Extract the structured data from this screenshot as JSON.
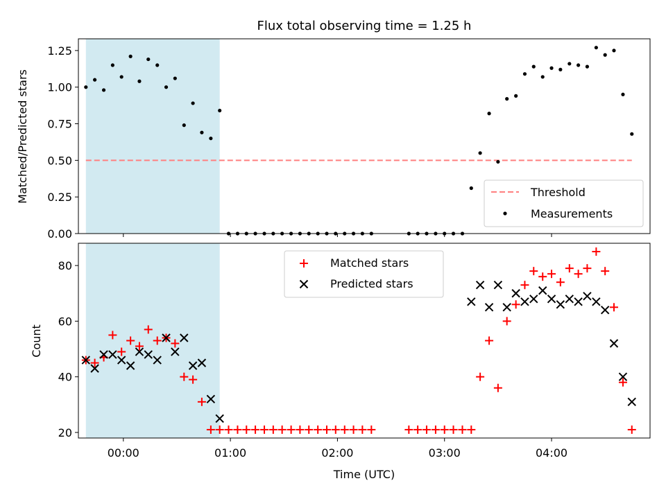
{
  "title": "Flux total observing time = 1.25 h",
  "colors": {
    "shade": "#add8e6",
    "threshold": "#ff7f7f",
    "measurement": "#000000",
    "matched": "#ff0000",
    "predicted": "#000000"
  },
  "chart_data": [
    {
      "type": "scatter",
      "panel": "top",
      "ylabel": "Matched/Predicted stars",
      "xlabel": "",
      "xlim": [
        -0.42,
        4.92
      ],
      "ylim": [
        0,
        1.33
      ],
      "yticks": [
        0.0,
        0.25,
        0.5,
        0.75,
        1.0,
        1.25
      ],
      "ytick_labels": [
        "0.00",
        "0.25",
        "0.50",
        "0.75",
        "1.00",
        "1.25"
      ],
      "xticks": [
        0,
        1,
        2,
        3,
        4
      ],
      "shaded_region": [
        -0.35,
        0.9
      ],
      "threshold": {
        "name": "Threshold",
        "y": 0.5,
        "x_range": [
          -0.35,
          4.75
        ]
      },
      "legend": {
        "position": "lower-right",
        "entries": [
          "Threshold",
          "Measurements"
        ]
      },
      "series": [
        {
          "name": "Measurements",
          "x": [
            -0.35,
            -0.267,
            -0.183,
            -0.1,
            -0.017,
            0.067,
            0.15,
            0.233,
            0.317,
            0.4,
            0.483,
            0.567,
            0.65,
            0.733,
            0.817,
            0.9,
            0.983,
            1.067,
            1.15,
            1.233,
            1.317,
            1.4,
            1.483,
            1.567,
            1.65,
            1.733,
            1.817,
            1.9,
            1.983,
            2.067,
            2.15,
            2.233,
            2.317,
            2.667,
            2.75,
            2.833,
            2.917,
            3.0,
            3.083,
            3.167,
            3.25,
            3.333,
            3.417,
            3.5,
            3.583,
            3.667,
            3.75,
            3.833,
            3.917,
            4.0,
            4.083,
            4.167,
            4.25,
            4.333,
            4.417,
            4.5,
            4.583,
            4.667,
            4.75
          ],
          "y": [
            1.0,
            1.05,
            0.98,
            1.15,
            1.07,
            1.21,
            1.04,
            1.19,
            1.15,
            1.0,
            1.06,
            0.74,
            0.89,
            0.69,
            0.65,
            0.84,
            0,
            0,
            0,
            0,
            0,
            0,
            0,
            0,
            0,
            0,
            0,
            0,
            0,
            0,
            0,
            0,
            0,
            0,
            0,
            0,
            0,
            0,
            0,
            0,
            0.31,
            0.55,
            0.82,
            0.49,
            0.92,
            0.94,
            1.09,
            1.14,
            1.07,
            1.13,
            1.12,
            1.16,
            1.15,
            1.14,
            1.27,
            1.22,
            1.25,
            0.95,
            0.68
          ]
        }
      ]
    },
    {
      "type": "scatter",
      "panel": "bottom",
      "ylabel": "Count",
      "xlabel": "Time (UTC)",
      "xlim": [
        -0.42,
        4.92
      ],
      "ylim": [
        18,
        88
      ],
      "yticks": [
        20,
        40,
        60,
        80
      ],
      "xticks": [
        0,
        1,
        2,
        3,
        4
      ],
      "xtick_labels": [
        "00:00",
        "01:00",
        "02:00",
        "03:00",
        "04:00"
      ],
      "shaded_region": [
        -0.35,
        0.9
      ],
      "legend": {
        "position": "upper-center",
        "entries": [
          "Matched stars",
          "Predicted stars"
        ]
      },
      "series": [
        {
          "name": "Matched stars",
          "marker": "+",
          "x": [
            -0.35,
            -0.267,
            -0.183,
            -0.1,
            -0.017,
            0.067,
            0.15,
            0.233,
            0.317,
            0.4,
            0.483,
            0.567,
            0.65,
            0.733,
            0.817,
            0.9,
            0.983,
            1.067,
            1.15,
            1.233,
            1.317,
            1.4,
            1.483,
            1.567,
            1.65,
            1.733,
            1.817,
            1.9,
            1.983,
            2.067,
            2.15,
            2.233,
            2.317,
            2.667,
            2.75,
            2.833,
            2.917,
            3.0,
            3.083,
            3.167,
            3.25,
            3.333,
            3.417,
            3.5,
            3.583,
            3.667,
            3.75,
            3.833,
            3.917,
            4.0,
            4.083,
            4.167,
            4.25,
            4.333,
            4.417,
            4.5,
            4.583,
            4.667,
            4.75
          ],
          "y": [
            46,
            45,
            47,
            55,
            49,
            53,
            51,
            57,
            53,
            54,
            52,
            40,
            39,
            31,
            21,
            21,
            21,
            21,
            21,
            21,
            21,
            21,
            21,
            21,
            21,
            21,
            21,
            21,
            21,
            21,
            21,
            21,
            21,
            21,
            21,
            21,
            21,
            21,
            21,
            21,
            21,
            40,
            53,
            36,
            60,
            66,
            73,
            78,
            76,
            77,
            74,
            79,
            77,
            79,
            85,
            78,
            65,
            38,
            21
          ]
        },
        {
          "name": "Predicted stars",
          "marker": "x",
          "x": [
            -0.35,
            -0.267,
            -0.183,
            -0.1,
            -0.017,
            0.067,
            0.15,
            0.233,
            0.317,
            0.4,
            0.483,
            0.567,
            0.65,
            0.733,
            0.817,
            0.9,
            3.25,
            3.333,
            3.417,
            3.5,
            3.583,
            3.667,
            3.75,
            3.833,
            3.917,
            4.0,
            4.083,
            4.167,
            4.25,
            4.333,
            4.417,
            4.5,
            4.583,
            4.667,
            4.75
          ],
          "y": [
            46,
            43,
            48,
            48,
            46,
            44,
            49,
            48,
            46,
            54,
            49,
            54,
            44,
            45,
            32,
            25,
            67,
            73,
            65,
            73,
            65,
            70,
            67,
            68,
            71,
            68,
            66,
            68,
            67,
            69,
            67,
            64,
            52,
            40,
            31
          ]
        }
      ]
    }
  ]
}
